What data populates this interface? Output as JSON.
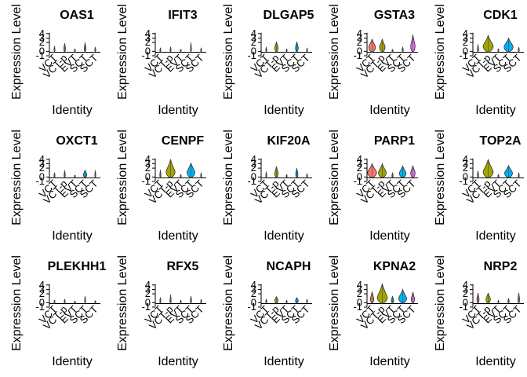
{
  "figure": {
    "xlabel": "Identity",
    "ylabel": "Expression Level",
    "yticks": [
      -1,
      0,
      2,
      3,
      4
    ],
    "groups": [
      "VCT",
      "VCT-p",
      "EVT",
      "SCT",
      "SCT"
    ],
    "group_colors": [
      "#F8766D",
      "#A3A500",
      "#00BF7D",
      "#00B0F6",
      "#E76BF3"
    ]
  },
  "chart_data": [
    {
      "type": "violin",
      "title": "OAS1",
      "ylim": [
        -1,
        4.5
      ],
      "max": [
        1.2,
        1.8,
        0.6,
        2.0,
        1.0
      ],
      "width": [
        0.05,
        0.15,
        0.05,
        0.15,
        0.05
      ]
    },
    {
      "type": "violin",
      "title": "IFIT3",
      "ylim": [
        -1,
        4.5
      ],
      "max": [
        0.8,
        1.0,
        0.5,
        2.0,
        0.8
      ],
      "width": [
        0.05,
        0.05,
        0.05,
        0.05,
        0.05
      ]
    },
    {
      "type": "violin",
      "title": "DLGAP5",
      "ylim": [
        -1,
        4.5
      ],
      "max": [
        1.0,
        2.2,
        0.6,
        2.2,
        0.8
      ],
      "width": [
        0.05,
        0.3,
        0.05,
        0.25,
        0.05
      ]
    },
    {
      "type": "violin",
      "title": "GSTA3",
      "ylim": [
        -1,
        4.5
      ],
      "max": [
        2.8,
        2.8,
        0.5,
        1.0,
        3.8
      ],
      "width": [
        0.6,
        0.5,
        0.05,
        0.1,
        0.4
      ]
    },
    {
      "type": "violin",
      "title": "CDK1",
      "ylim": [
        -1,
        4.5
      ],
      "max": [
        1.6,
        3.6,
        0.6,
        3.0,
        1.0
      ],
      "width": [
        0.1,
        0.9,
        0.05,
        0.8,
        0.05
      ]
    },
    {
      "type": "violin",
      "title": "OXCT1",
      "ylim": [
        -1,
        4.5
      ],
      "max": [
        1.0,
        1.5,
        0.5,
        1.6,
        1.5
      ],
      "width": [
        0.05,
        0.1,
        0.05,
        0.3,
        0.05
      ]
    },
    {
      "type": "violin",
      "title": "CENPF",
      "ylim": [
        -1,
        4.5
      ],
      "max": [
        1.6,
        4.0,
        0.6,
        3.2,
        1.0
      ],
      "width": [
        0.1,
        0.8,
        0.05,
        0.7,
        0.05
      ]
    },
    {
      "type": "violin",
      "title": "KIF20A",
      "ylim": [
        -1,
        4.5
      ],
      "max": [
        1.2,
        2.4,
        0.6,
        2.0,
        0.8
      ],
      "width": [
        0.05,
        0.3,
        0.05,
        0.2,
        0.05
      ]
    },
    {
      "type": "violin",
      "title": "PARP1",
      "ylim": [
        -1,
        4.5
      ],
      "max": [
        3.0,
        3.0,
        1.0,
        2.5,
        2.6
      ],
      "width": [
        0.8,
        0.7,
        0.1,
        0.6,
        0.4
      ]
    },
    {
      "type": "violin",
      "title": "TOP2A",
      "ylim": [
        -1,
        4.5
      ],
      "max": [
        1.4,
        4.0,
        0.6,
        2.6,
        1.0
      ],
      "width": [
        0.1,
        0.9,
        0.05,
        0.7,
        0.05
      ]
    },
    {
      "type": "violin",
      "title": "PLEKHH1",
      "ylim": [
        -1,
        4.5
      ],
      "max": [
        0.6,
        0.8,
        0.4,
        1.5,
        0.5
      ],
      "width": [
        0.05,
        0.05,
        0.05,
        0.05,
        0.05
      ]
    },
    {
      "type": "violin",
      "title": "RFX5",
      "ylim": [
        -1,
        4.5
      ],
      "max": [
        1.2,
        1.8,
        0.6,
        1.5,
        0.8
      ],
      "width": [
        0.05,
        0.1,
        0.05,
        0.1,
        0.05
      ]
    },
    {
      "type": "violin",
      "title": "NCAPH",
      "ylim": [
        -1,
        4.5
      ],
      "max": [
        0.8,
        1.4,
        0.6,
        1.2,
        0.8
      ],
      "width": [
        0.05,
        0.3,
        0.05,
        0.25,
        0.05
      ]
    },
    {
      "type": "violin",
      "title": "KPNA2",
      "ylim": [
        -1,
        4.5
      ],
      "max": [
        2.5,
        4.3,
        1.5,
        3.0,
        2.4
      ],
      "width": [
        0.3,
        0.9,
        0.2,
        0.7,
        0.3
      ]
    },
    {
      "type": "violin",
      "title": "NRP2",
      "ylim": [
        -1,
        4.5
      ],
      "max": [
        2.2,
        2.2,
        0.6,
        1.0,
        2.2
      ],
      "width": [
        0.2,
        0.4,
        0.05,
        0.1,
        0.15
      ]
    }
  ]
}
